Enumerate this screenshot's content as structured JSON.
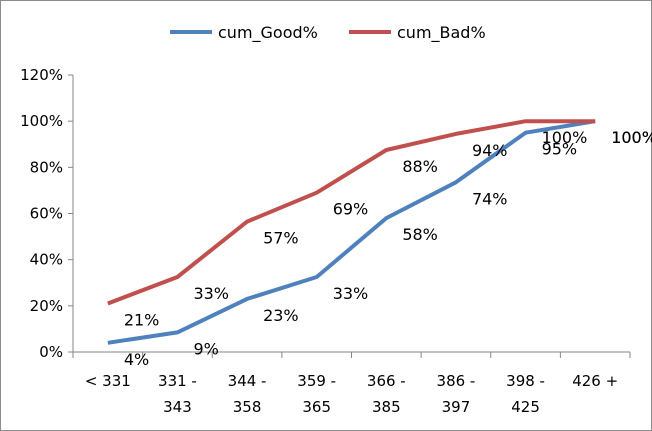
{
  "chart_data": {
    "type": "line",
    "categories": [
      [
        "< 331"
      ],
      [
        "331 -",
        "343"
      ],
      [
        "344 -",
        "358"
      ],
      [
        "359 -",
        "365"
      ],
      [
        "366 -",
        "385"
      ],
      [
        "386 -",
        "397"
      ],
      [
        "398 -",
        "425"
      ],
      [
        "426 +"
      ]
    ],
    "series": [
      {
        "name": "cum_Good%",
        "color": "#4f81bd",
        "values": [
          0.04,
          0.085,
          0.23,
          0.325,
          0.58,
          0.735,
          0.95,
          1.0
        ],
        "labels": [
          "4%",
          "9%",
          "23%",
          "33%",
          "58%",
          "74%",
          "95%",
          "100%"
        ]
      },
      {
        "name": "cum_Bad%",
        "color": "#c0504d",
        "values": [
          0.21,
          0.325,
          0.565,
          0.69,
          0.875,
          0.945,
          1.0,
          1.0
        ],
        "labels": [
          "21%",
          "33%",
          "57%",
          "69%",
          "88%",
          "94%",
          "100%",
          "100%"
        ]
      }
    ],
    "y_ticks": [
      {
        "value": 0,
        "label": "0%"
      },
      {
        "value": 0.2,
        "label": "20%"
      },
      {
        "value": 0.4,
        "label": "40%"
      },
      {
        "value": 0.6,
        "label": "60%"
      },
      {
        "value": 0.8,
        "label": "80%"
      },
      {
        "value": 1.0,
        "label": "100%"
      },
      {
        "value": 1.2,
        "label": "120%"
      }
    ],
    "ylim": [
      0,
      1.2
    ],
    "grid": false,
    "legend_position": "top"
  }
}
